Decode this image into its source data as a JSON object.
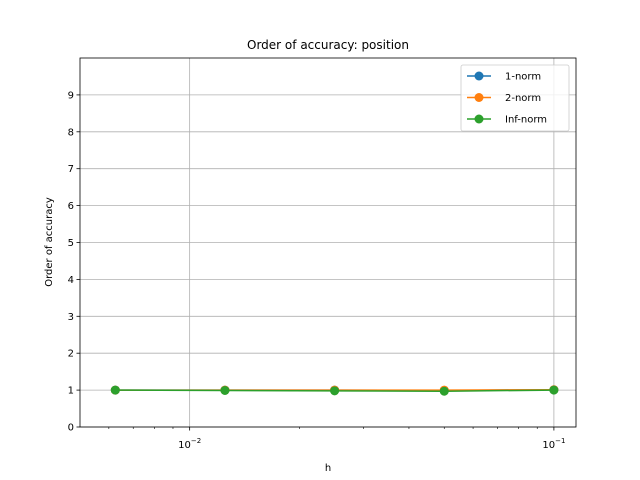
{
  "chart_data": {
    "type": "line",
    "title": "Order of accuracy: position",
    "xlabel": "h",
    "ylabel": "Order of accuracy",
    "xscale": "log",
    "xlim": [
      0.005,
      0.115
    ],
    "ylim": [
      0,
      10
    ],
    "yticks": [
      0,
      1,
      2,
      3,
      4,
      5,
      6,
      7,
      8,
      9
    ],
    "xticks_major": [
      {
        "value": 0.01,
        "base": "10",
        "exp": "−2"
      },
      {
        "value": 0.1,
        "base": "10",
        "exp": "−1"
      }
    ],
    "grid": true,
    "legend_position": "top-right",
    "x": [
      0.00625,
      0.0125,
      0.025,
      0.05,
      0.1
    ],
    "series": [
      {
        "name": "1-norm",
        "color": "#1f77b4",
        "values": [
          1.0,
          1.0,
          1.0,
          0.99,
          1.01
        ]
      },
      {
        "name": "2-norm",
        "color": "#ff7f0e",
        "values": [
          1.0,
          1.0,
          1.0,
          1.0,
          1.01
        ]
      },
      {
        "name": "Inf-norm",
        "color": "#2ca02c",
        "values": [
          1.0,
          0.99,
          0.98,
          0.97,
          1.0
        ]
      }
    ]
  }
}
